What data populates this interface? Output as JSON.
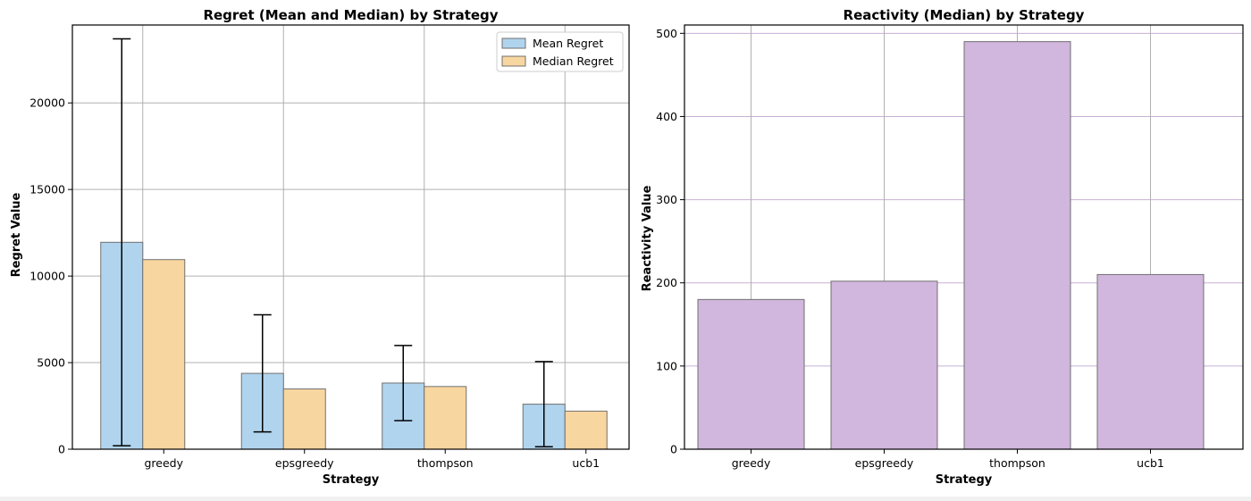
{
  "chart_data": [
    {
      "type": "bar",
      "title": "Regret (Mean and Median) by Strategy",
      "xlabel": "Strategy",
      "ylabel": "Regret Value",
      "categories": [
        "greedy",
        "epsgreedy",
        "thompson",
        "ucb1"
      ],
      "series": [
        {
          "name": "Mean Regret",
          "values": [
            11950,
            4380,
            3820,
            2600
          ],
          "error": [
            11750,
            3380,
            2170,
            2460
          ],
          "color": "#b0d4ee"
        },
        {
          "name": "Median Regret",
          "values": [
            10950,
            3480,
            3620,
            2200
          ],
          "color": "#f8d6a0"
        }
      ],
      "ylim": [
        0,
        24500
      ],
      "yticks": [
        0,
        5000,
        10000,
        15000,
        20000
      ],
      "grid": true,
      "legend": "top-right"
    },
    {
      "type": "bar",
      "title": "Reactivity (Median) by Strategy",
      "xlabel": "Strategy",
      "ylabel": "Reactivity Value",
      "categories": [
        "greedy",
        "epsgreedy",
        "thompson",
        "ucb1"
      ],
      "series": [
        {
          "values": [
            180,
            202,
            490,
            210
          ],
          "color": "#d1b6dd"
        }
      ],
      "ylim": [
        0,
        510
      ],
      "yticks": [
        0,
        100,
        200,
        300,
        400,
        500
      ],
      "grid": true
    }
  ]
}
